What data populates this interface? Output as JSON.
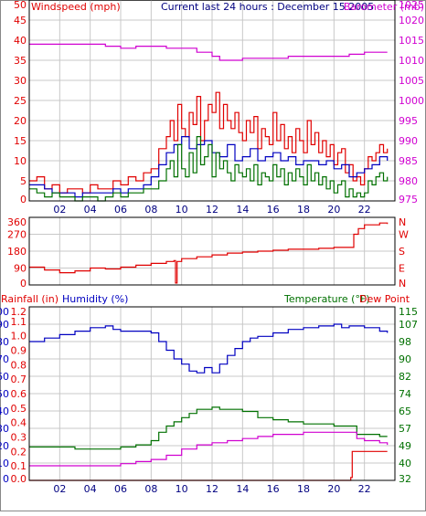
{
  "colors": {
    "red": "#e00000",
    "blue": "#0000c0",
    "green": "#007000",
    "magenta": "#d000d0",
    "grid": "#c8c8c8",
    "frame": "#000000",
    "title": "#000080"
  },
  "chart_data": [
    {
      "type": "line",
      "title": "Current last 24 hours : December 15 2005",
      "ylabel": "Windspeed (mph)",
      "y2label": "Barometer (mb)",
      "x_ticks": [
        "02",
        "04",
        "06",
        "08",
        "10",
        "12",
        "14",
        "16",
        "18",
        "20",
        "22"
      ],
      "y_ticks": [
        "50",
        "45",
        "40",
        "35",
        "30",
        "25",
        "20",
        "15",
        "10",
        "5",
        "0"
      ],
      "y2_ticks": [
        "1025",
        "1020",
        "1015",
        "1010",
        "1005",
        "1000",
        "995",
        "990",
        "985",
        "980",
        "975"
      ],
      "xlim": [
        0,
        24
      ],
      "ylim": [
        0,
        50
      ],
      "y2lim": [
        975,
        1025
      ],
      "grid": true,
      "series": [
        {
          "axis": "left",
          "color": "red",
          "x": [
            0,
            0.5,
            1,
            1.5,
            2,
            2.5,
            3,
            3.5,
            4,
            4.5,
            5,
            5.5,
            6,
            6.5,
            7,
            7.5,
            8,
            8.5,
            9,
            9.25,
            9.5,
            9.75,
            10,
            10.25,
            10.5,
            10.75,
            11,
            11.25,
            11.5,
            11.75,
            12,
            12.25,
            12.5,
            12.75,
            13,
            13.25,
            13.5,
            13.75,
            14,
            14.25,
            14.5,
            14.75,
            15,
            15.25,
            15.5,
            15.75,
            16,
            16.25,
            16.5,
            16.75,
            17,
            17.25,
            17.5,
            17.75,
            18,
            18.25,
            18.5,
            18.75,
            19,
            19.25,
            19.5,
            19.75,
            20,
            20.25,
            20.5,
            20.75,
            21,
            21.25,
            21.5,
            21.75,
            22,
            22.25,
            22.5,
            22.75,
            23,
            23.25,
            23.5
          ],
          "y": [
            5,
            6,
            3,
            4,
            2,
            3,
            3,
            2,
            4,
            3,
            3,
            5,
            4,
            6,
            5,
            7,
            8,
            13,
            16,
            20,
            15,
            24,
            18,
            16,
            22,
            19,
            26,
            15,
            20,
            24,
            22,
            27,
            18,
            24,
            20,
            18,
            22,
            17,
            15,
            20,
            17,
            21,
            13,
            18,
            16,
            14,
            22,
            15,
            19,
            13,
            16,
            12,
            18,
            15,
            12,
            20,
            14,
            17,
            12,
            15,
            11,
            14,
            9,
            12,
            13,
            7,
            9,
            5,
            6,
            4,
            8,
            11,
            10,
            12,
            14,
            12,
            13
          ]
        },
        {
          "axis": "left",
          "color": "blue",
          "x": [
            0,
            0.5,
            1,
            1.5,
            2,
            2.5,
            3,
            3.5,
            4,
            4.5,
            5,
            5.5,
            6,
            6.5,
            7,
            7.5,
            8,
            8.5,
            9,
            9.5,
            10,
            10.5,
            11,
            11.5,
            12,
            12.5,
            13,
            13.5,
            14,
            14.5,
            15,
            15.5,
            16,
            16.5,
            17,
            17.5,
            18,
            18.5,
            19,
            19.5,
            20,
            20.5,
            21,
            21.5,
            22,
            22.5,
            23,
            23.5
          ],
          "y": [
            4,
            4,
            3,
            2,
            2,
            2,
            1,
            2,
            2,
            2,
            2,
            3,
            2,
            3,
            3,
            4,
            6,
            9,
            12,
            14,
            16,
            13,
            14,
            15,
            12,
            11,
            14,
            10,
            11,
            13,
            10,
            11,
            12,
            10,
            11,
            9,
            10,
            10,
            9,
            10,
            8,
            9,
            6,
            7,
            8,
            9,
            11,
            10
          ]
        },
        {
          "axis": "left",
          "color": "green",
          "x": [
            0,
            0.5,
            1,
            1.5,
            2,
            2.5,
            3,
            3.5,
            4,
            4.5,
            5,
            5.5,
            6,
            6.5,
            7,
            7.5,
            8,
            8.5,
            9,
            9.25,
            9.5,
            9.75,
            10,
            10.25,
            10.5,
            10.75,
            11,
            11.25,
            11.5,
            11.75,
            12,
            12.25,
            12.5,
            12.75,
            13,
            13.25,
            13.5,
            13.75,
            14,
            14.25,
            14.5,
            14.75,
            15,
            15.25,
            15.5,
            15.75,
            16,
            16.25,
            16.5,
            16.75,
            17,
            17.25,
            17.5,
            17.75,
            18,
            18.25,
            18.5,
            18.75,
            19,
            19.25,
            19.5,
            19.75,
            20,
            20.25,
            20.5,
            20.75,
            21,
            21.25,
            21.5,
            21.75,
            22,
            22.25,
            22.5,
            22.75,
            23,
            23.25,
            23.5
          ],
          "y": [
            3,
            2,
            1,
            2,
            1,
            1,
            0,
            1,
            1,
            0,
            1,
            2,
            1,
            2,
            2,
            3,
            3,
            5,
            8,
            10,
            6,
            14,
            8,
            6,
            12,
            7,
            16,
            9,
            11,
            14,
            6,
            12,
            8,
            10,
            7,
            5,
            9,
            7,
            6,
            8,
            5,
            9,
            4,
            7,
            6,
            5,
            9,
            6,
            8,
            4,
            7,
            5,
            8,
            6,
            4,
            9,
            5,
            7,
            4,
            6,
            3,
            5,
            2,
            4,
            5,
            1,
            3,
            1,
            2,
            1,
            2,
            5,
            4,
            6,
            7,
            5,
            6
          ]
        },
        {
          "axis": "right",
          "color": "magenta",
          "x": [
            0,
            1,
            2,
            3,
            4,
            5,
            6,
            7,
            8,
            9,
            10,
            11,
            12,
            12.5,
            13,
            14,
            15,
            16,
            17,
            18,
            19,
            20,
            21,
            22,
            23,
            23.5
          ],
          "y": [
            1014,
            1014,
            1014,
            1014,
            1014,
            1013.5,
            1013,
            1013.5,
            1013.5,
            1013,
            1013,
            1012,
            1011,
            1010,
            1010,
            1010.5,
            1010.5,
            1010.5,
            1011,
            1011,
            1011,
            1011,
            1011.5,
            1012,
            1012,
            1012
          ]
        }
      ]
    },
    {
      "type": "line",
      "ylabel": "",
      "y_ticks": [
        "360",
        "270",
        "180",
        "90",
        "0"
      ],
      "y2_ticks": [
        "N",
        "W",
        "S",
        "E",
        "N"
      ],
      "xlim": [
        0,
        24
      ],
      "ylim": [
        0,
        360
      ],
      "grid": true,
      "series": [
        {
          "axis": "left",
          "color": "red",
          "x": [
            0,
            1,
            2,
            3,
            4,
            5,
            6,
            7,
            8,
            9,
            9.5,
            9.6,
            9.7,
            10,
            11,
            12,
            13,
            14,
            15,
            16,
            17,
            18,
            19,
            20,
            21,
            21.3,
            21.6,
            22,
            23,
            23.5
          ],
          "y": [
            95,
            80,
            65,
            75,
            90,
            85,
            95,
            105,
            115,
            125,
            130,
            10,
            125,
            140,
            150,
            160,
            170,
            175,
            180,
            185,
            190,
            190,
            195,
            200,
            200,
            270,
            300,
            320,
            330,
            325
          ]
        }
      ]
    },
    {
      "type": "line",
      "ylabel": "Rainfall (in)",
      "y2label": "Humidity (%)",
      "y3label": "Temperature (°F)",
      "y4label": "Dew Point",
      "x_ticks": [
        "02",
        "04",
        "06",
        "08",
        "10",
        "12",
        "14",
        "16",
        "18",
        "20",
        "22"
      ],
      "y_ticks_humidity": [
        "100",
        "90",
        "80",
        "70",
        "60",
        "50",
        "40",
        "30",
        "20",
        "10",
        "0"
      ],
      "y_ticks_rain": [
        "1.2",
        "1.1",
        "1.0",
        "0.9",
        "0.8",
        "0.7",
        "0.6",
        "0.5",
        "0.4",
        "0.3",
        "0.2",
        "0.1",
        "0.0"
      ],
      "y_ticks_temp": [
        "115",
        "107",
        "98",
        "90",
        "82",
        "74",
        "65",
        "57",
        "49",
        "40",
        "32"
      ],
      "xlim": [
        0,
        24
      ],
      "ylim_humidity": [
        0,
        100
      ],
      "ylim_rain": [
        0,
        1.2
      ],
      "ylim_temp": [
        32,
        115
      ],
      "grid": true,
      "series": [
        {
          "name": "Humidity (%)",
          "axis": "humidity",
          "color": "blue",
          "x": [
            0,
            1,
            2,
            3,
            4,
            5,
            5.5,
            6,
            7,
            8,
            8.5,
            9,
            9.5,
            10,
            10.5,
            11,
            11.5,
            12,
            12.5,
            13,
            13.5,
            14,
            14.5,
            15,
            16,
            17,
            18,
            19,
            20,
            20.5,
            21,
            22,
            23,
            23.5
          ],
          "y": [
            80,
            82,
            84,
            86,
            88,
            89,
            87,
            86,
            86,
            85,
            80,
            75,
            70,
            67,
            63,
            62,
            65,
            62,
            67,
            72,
            76,
            80,
            82,
            83,
            85,
            87,
            88,
            89,
            90,
            88,
            89,
            88,
            86,
            85
          ]
        },
        {
          "name": "Temperature (°F)",
          "axis": "temp",
          "color": "green",
          "x": [
            0,
            1,
            2,
            3,
            4,
            5,
            6,
            7,
            8,
            8.5,
            9,
            9.5,
            10,
            10.5,
            11,
            11.5,
            12,
            12.5,
            13,
            14,
            15,
            16,
            17,
            18,
            19,
            20,
            21,
            21.5,
            22,
            23,
            23.5
          ],
          "y": [
            48,
            48,
            48,
            47,
            47,
            47,
            48,
            49,
            51,
            55,
            58,
            60,
            62,
            64,
            66,
            66,
            67,
            66,
            66,
            65,
            62,
            61,
            60,
            59,
            59,
            58,
            58,
            54,
            54,
            53,
            53
          ]
        },
        {
          "name": "Dew Point",
          "axis": "temp",
          "color": "magenta",
          "x": [
            0,
            2,
            4,
            6,
            7,
            8,
            9,
            10,
            11,
            12,
            13,
            14,
            15,
            16,
            17,
            18,
            19,
            20,
            21,
            21.5,
            22,
            23,
            23.5
          ],
          "y": [
            39,
            39,
            39,
            40,
            41,
            42,
            44,
            47,
            49,
            50,
            51,
            52,
            53,
            54,
            54,
            55,
            55,
            55,
            55,
            52,
            51,
            50,
            49
          ]
        },
        {
          "name": "Rainfall (in)",
          "axis": "rain",
          "color": "red",
          "x": [
            0,
            21,
            21.1,
            21.2,
            23.5
          ],
          "y": [
            0,
            0,
            0.02,
            0.2,
            0.2
          ]
        }
      ]
    }
  ]
}
